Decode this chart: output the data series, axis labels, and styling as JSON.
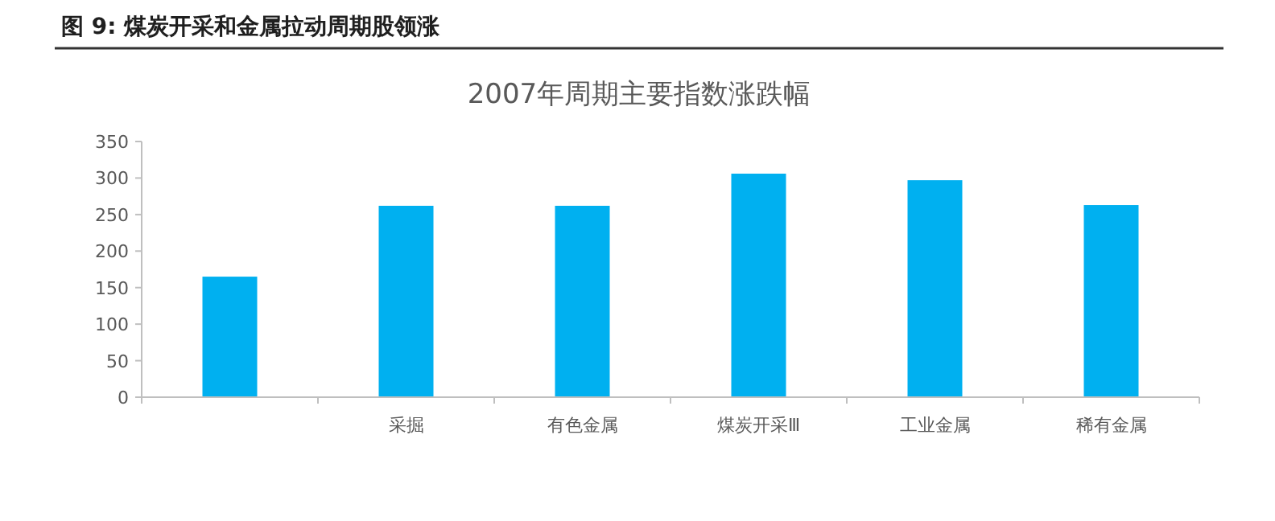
{
  "chart_data": {
    "type": "bar",
    "title": "图 9:    煤炭开采和金属拉动周期股领涨",
    "subtitle": "2007年周期主要指数涨跌幅",
    "categories": [
      null,
      "采掘",
      "有色金属",
      "煤炭开采Ⅲ",
      "工业金属",
      "稀有金属"
    ],
    "values": [
      165,
      262,
      262,
      306,
      297,
      263
    ],
    "color": "#00b0f0",
    "ylim": [
      0,
      350
    ],
    "yticks": [
      0,
      50,
      100,
      150,
      200,
      250,
      300,
      350
    ],
    "grid": false
  }
}
